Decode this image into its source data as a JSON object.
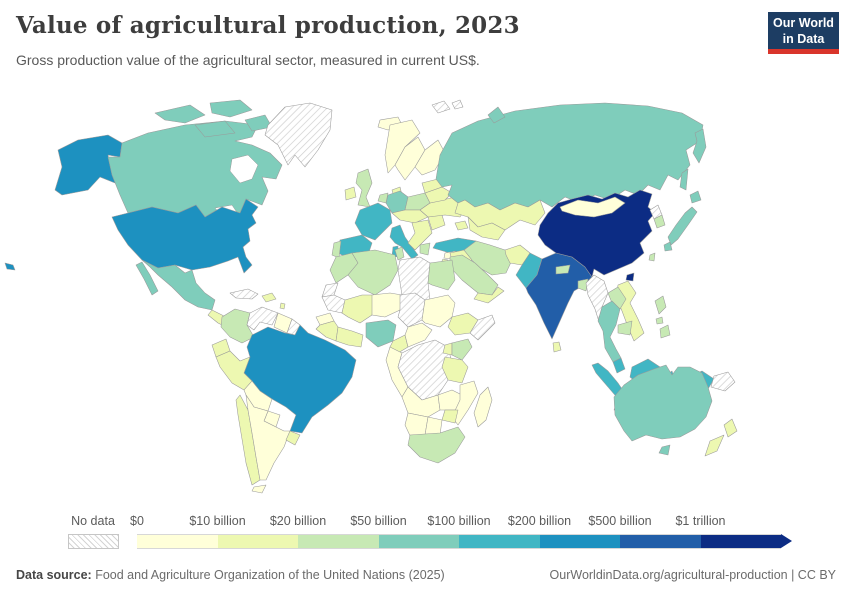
{
  "header": {
    "title": "Value of agricultural production, 2023",
    "subtitle": "Gross production value of the agricultural sector, measured in current US$.",
    "logo": {
      "line1": "Our World",
      "line2": "in Data",
      "bg": "#1d3d63",
      "accent": "#d9352b"
    }
  },
  "legend": {
    "no_data_label": "No data"
  },
  "footer": {
    "source_label": "Data source:",
    "source_text": " Food and Agriculture Organization of the United Nations (2025)",
    "credit": "OurWorldinData.org/agricultural-production | CC BY"
  },
  "chart_data": {
    "type": "choropleth_map",
    "title": "Value of agricultural production, 2023",
    "metric": "Gross production value of the agricultural sector",
    "unit": "current US$",
    "year": 2023,
    "legend_position": "bottom",
    "bins": [
      {
        "label": "$0",
        "color": "#ffffd9",
        "range": "$0–$10 billion"
      },
      {
        "label": "$10 billion",
        "color": "#edf8b1",
        "range": "$10–$20 billion"
      },
      {
        "label": "$20 billion",
        "color": "#c7e9b4",
        "range": "$20–$50 billion"
      },
      {
        "label": "$50 billion",
        "color": "#7fcdbb",
        "range": "$50–$100 billion"
      },
      {
        "label": "$100 billion",
        "color": "#41b6c4",
        "range": "$100–$200 billion"
      },
      {
        "label": "$200 billion",
        "color": "#1d91c0",
        "range": "$200–$500 billion"
      },
      {
        "label": "$500 billion",
        "color": "#225ea8",
        "range": "$500 billion–$1 trillion"
      },
      {
        "label": "$1 trillion",
        "color": "#0c2c84",
        "range": "$1 trillion+"
      }
    ],
    "no_data": {
      "label": "No data",
      "pattern": "diagonal-hatch"
    },
    "countries": [
      {
        "id": "usa",
        "name": "United States",
        "bin": 5
      },
      {
        "id": "canada",
        "name": "Canada",
        "bin": 3
      },
      {
        "id": "greenland",
        "name": "Greenland",
        "bin": -1
      },
      {
        "id": "mexico",
        "name": "Mexico",
        "bin": 3
      },
      {
        "id": "central-america-n",
        "name": "Central America (north)",
        "bin": 1
      },
      {
        "id": "central-america-s",
        "name": "Costa Rica/Panama",
        "bin": 1
      },
      {
        "id": "cuba",
        "name": "Cuba",
        "bin": -1
      },
      {
        "id": "hispaniola",
        "name": "Haiti/Dominican Republic",
        "bin": 1
      },
      {
        "id": "caribbean",
        "name": "Lesser Antilles",
        "bin": 1
      },
      {
        "id": "colombia",
        "name": "Colombia",
        "bin": 2
      },
      {
        "id": "venezuela",
        "name": "Venezuela",
        "bin": -1
      },
      {
        "id": "guyanas",
        "name": "Guyana/Suriname",
        "bin": 0
      },
      {
        "id": "french-guiana",
        "name": "French Guiana",
        "bin": -1
      },
      {
        "id": "ecuador",
        "name": "Ecuador",
        "bin": 1
      },
      {
        "id": "peru",
        "name": "Peru",
        "bin": 1
      },
      {
        "id": "brazil",
        "name": "Brazil",
        "bin": 5
      },
      {
        "id": "bolivia",
        "name": "Bolivia",
        "bin": 0
      },
      {
        "id": "paraguay",
        "name": "Paraguay",
        "bin": 0
      },
      {
        "id": "chile",
        "name": "Chile",
        "bin": 1
      },
      {
        "id": "argentina",
        "name": "Argentina",
        "bin": 0
      },
      {
        "id": "uruguay",
        "name": "Uruguay",
        "bin": 1
      },
      {
        "id": "iceland",
        "name": "Iceland",
        "bin": 0
      },
      {
        "id": "ireland",
        "name": "Ireland",
        "bin": 1
      },
      {
        "id": "uk",
        "name": "United Kingdom",
        "bin": 2
      },
      {
        "id": "norway",
        "name": "Norway",
        "bin": 0
      },
      {
        "id": "sweden",
        "name": "Sweden",
        "bin": 0
      },
      {
        "id": "finland",
        "name": "Finland",
        "bin": 0
      },
      {
        "id": "denmark",
        "name": "Denmark",
        "bin": 1
      },
      {
        "id": "france",
        "name": "France",
        "bin": 4
      },
      {
        "id": "spain",
        "name": "Spain",
        "bin": 4
      },
      {
        "id": "portugal",
        "name": "Portugal",
        "bin": 2
      },
      {
        "id": "italy",
        "name": "Italy",
        "bin": 4
      },
      {
        "id": "germany",
        "name": "Germany",
        "bin": 3
      },
      {
        "id": "benelux",
        "name": "Belgium/Netherlands",
        "bin": 2
      },
      {
        "id": "poland",
        "name": "Poland",
        "bin": 2
      },
      {
        "id": "central-europe",
        "name": "Czechia/Austria/Hungary",
        "bin": 1
      },
      {
        "id": "balkans",
        "name": "Balkans",
        "bin": 1
      },
      {
        "id": "greece",
        "name": "Greece",
        "bin": 2
      },
      {
        "id": "romania",
        "name": "Romania",
        "bin": 1
      },
      {
        "id": "ukraine",
        "name": "Ukraine",
        "bin": 1
      },
      {
        "id": "belarus",
        "name": "Belarus",
        "bin": 1
      },
      {
        "id": "baltics",
        "name": "Baltic states",
        "bin": 1
      },
      {
        "id": "russia",
        "name": "Russia",
        "bin": 3
      },
      {
        "id": "kazakhstan",
        "name": "Kazakhstan",
        "bin": 1
      },
      {
        "id": "central-asia",
        "name": "Uzbekistan/Turkmenistan",
        "bin": 1
      },
      {
        "id": "caucasus",
        "name": "Caucasus",
        "bin": 1
      },
      {
        "id": "turkey",
        "name": "Turkey",
        "bin": 4
      },
      {
        "id": "syria",
        "name": "Syria",
        "bin": 0
      },
      {
        "id": "levant",
        "name": "Israel/Jordan",
        "bin": 1
      },
      {
        "id": "iraq",
        "name": "Iraq",
        "bin": 1
      },
      {
        "id": "iran",
        "name": "Iran",
        "bin": 2
      },
      {
        "id": "afghanistan",
        "name": "Afghanistan",
        "bin": 1
      },
      {
        "id": "saudi",
        "name": "Saudi Arabia",
        "bin": 2
      },
      {
        "id": "yemen",
        "name": "Yemen/Oman",
        "bin": 1
      },
      {
        "id": "pakistan",
        "name": "Pakistan",
        "bin": 4
      },
      {
        "id": "india",
        "name": "India",
        "bin": 6
      },
      {
        "id": "nepal",
        "name": "Nepal",
        "bin": 2
      },
      {
        "id": "bangladesh",
        "name": "Bangladesh",
        "bin": 2
      },
      {
        "id": "sri-lanka",
        "name": "Sri Lanka",
        "bin": 1
      },
      {
        "id": "china",
        "name": "China",
        "bin": 7
      },
      {
        "id": "mongolia",
        "name": "Mongolia",
        "bin": 0
      },
      {
        "id": "north-korea",
        "name": "North Korea",
        "bin": -1
      },
      {
        "id": "south-korea",
        "name": "South Korea",
        "bin": 2
      },
      {
        "id": "japan",
        "name": "Japan",
        "bin": 3
      },
      {
        "id": "taiwan",
        "name": "Taiwan",
        "bin": 2
      },
      {
        "id": "myanmar",
        "name": "Myanmar",
        "bin": -1
      },
      {
        "id": "thailand",
        "name": "Thailand",
        "bin": 3
      },
      {
        "id": "laos",
        "name": "Laos",
        "bin": 2
      },
      {
        "id": "vietnam",
        "name": "Vietnam",
        "bin": 1
      },
      {
        "id": "cambodia",
        "name": "Cambodia",
        "bin": 2
      },
      {
        "id": "malaysia",
        "name": "Malaysia",
        "bin": 4
      },
      {
        "id": "indonesia",
        "name": "Indonesia",
        "bin": 4
      },
      {
        "id": "philippines",
        "name": "Philippines",
        "bin": 2
      },
      {
        "id": "png",
        "name": "Papua New Guinea",
        "bin": -1
      },
      {
        "id": "australia",
        "name": "Australia",
        "bin": 3
      },
      {
        "id": "new-zealand",
        "name": "New Zealand",
        "bin": 1
      },
      {
        "id": "morocco",
        "name": "Morocco",
        "bin": 2
      },
      {
        "id": "western-sahara",
        "name": "Western Sahara",
        "bin": -1
      },
      {
        "id": "algeria",
        "name": "Algeria",
        "bin": 2
      },
      {
        "id": "tunisia",
        "name": "Tunisia",
        "bin": 2
      },
      {
        "id": "libya",
        "name": "Libya",
        "bin": -1
      },
      {
        "id": "egypt",
        "name": "Egypt",
        "bin": 2
      },
      {
        "id": "mauritania",
        "name": "Mauritania",
        "bin": -1
      },
      {
        "id": "mali",
        "name": "Mali",
        "bin": 1
      },
      {
        "id": "senegal",
        "name": "Senegal",
        "bin": 0
      },
      {
        "id": "guinea",
        "name": "Guinea region",
        "bin": 1
      },
      {
        "id": "ghana",
        "name": "Ghana/Côte d'Ivoire",
        "bin": 1
      },
      {
        "id": "niger",
        "name": "Niger",
        "bin": 0
      },
      {
        "id": "chad",
        "name": "Chad",
        "bin": -1
      },
      {
        "id": "sudan",
        "name": "Sudan",
        "bin": 0
      },
      {
        "id": "ethiopia",
        "name": "Ethiopia",
        "bin": 1
      },
      {
        "id": "somalia",
        "name": "Somalia",
        "bin": -1
      },
      {
        "id": "nigeria",
        "name": "Nigeria",
        "bin": 3
      },
      {
        "id": "cameroon",
        "name": "Cameroon",
        "bin": 1
      },
      {
        "id": "car",
        "name": "Central African Republic",
        "bin": 0
      },
      {
        "id": "drc",
        "name": "Democratic Republic of Congo",
        "bin": -1
      },
      {
        "id": "congo-gabon",
        "name": "Gabon/Congo",
        "bin": 0
      },
      {
        "id": "uganda",
        "name": "Uganda",
        "bin": 1
      },
      {
        "id": "kenya",
        "name": "Kenya",
        "bin": 2
      },
      {
        "id": "tanzania",
        "name": "Tanzania",
        "bin": 1
      },
      {
        "id": "angola",
        "name": "Angola",
        "bin": 0
      },
      {
        "id": "zambia",
        "name": "Zambia",
        "bin": 0
      },
      {
        "id": "zimbabwe",
        "name": "Zimbabwe",
        "bin": 1
      },
      {
        "id": "mozambique",
        "name": "Mozambique",
        "bin": 0
      },
      {
        "id": "namibia",
        "name": "Namibia",
        "bin": 0
      },
      {
        "id": "botswana",
        "name": "Botswana",
        "bin": 0
      },
      {
        "id": "south-africa",
        "name": "South Africa",
        "bin": 2
      },
      {
        "id": "madagascar",
        "name": "Madagascar",
        "bin": 0
      },
      {
        "id": "svalbard",
        "name": "Svalbard",
        "bin": -1
      }
    ]
  }
}
